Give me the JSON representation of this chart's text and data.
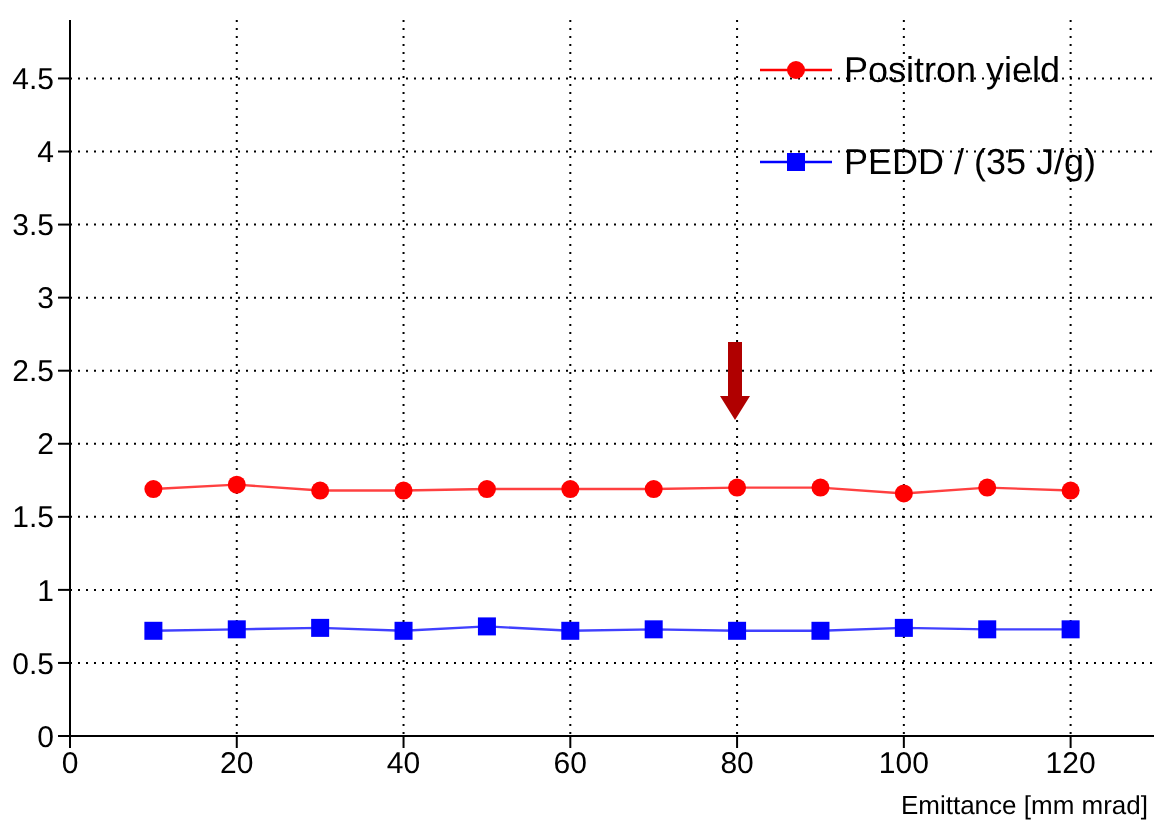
{
  "chart_data": {
    "type": "line",
    "xlabel": "Emittance [mm mrad]",
    "x": [
      10,
      20,
      30,
      40,
      50,
      60,
      70,
      80,
      90,
      100,
      110,
      120
    ],
    "series": [
      {
        "name": "Positron yield",
        "color": "#ff0000",
        "marker": "circle",
        "values": [
          1.69,
          1.72,
          1.68,
          1.68,
          1.69,
          1.69,
          1.69,
          1.7,
          1.7,
          1.66,
          1.7,
          1.68
        ]
      },
      {
        "name": "PEDD / (35 J/g)",
        "color": "#0000ff",
        "marker": "square",
        "values": [
          0.72,
          0.73,
          0.74,
          0.72,
          0.75,
          0.72,
          0.73,
          0.72,
          0.72,
          0.74,
          0.73,
          0.73
        ]
      }
    ],
    "xlim": [
      0,
      130
    ],
    "xticks": [
      0,
      20,
      40,
      60,
      80,
      100,
      120
    ],
    "ylim": [
      0,
      4.9
    ],
    "yticks": [
      0,
      0.5,
      1,
      1.5,
      2,
      2.5,
      3,
      3.5,
      4,
      4.5
    ],
    "grid": true,
    "legend": "top right"
  }
}
